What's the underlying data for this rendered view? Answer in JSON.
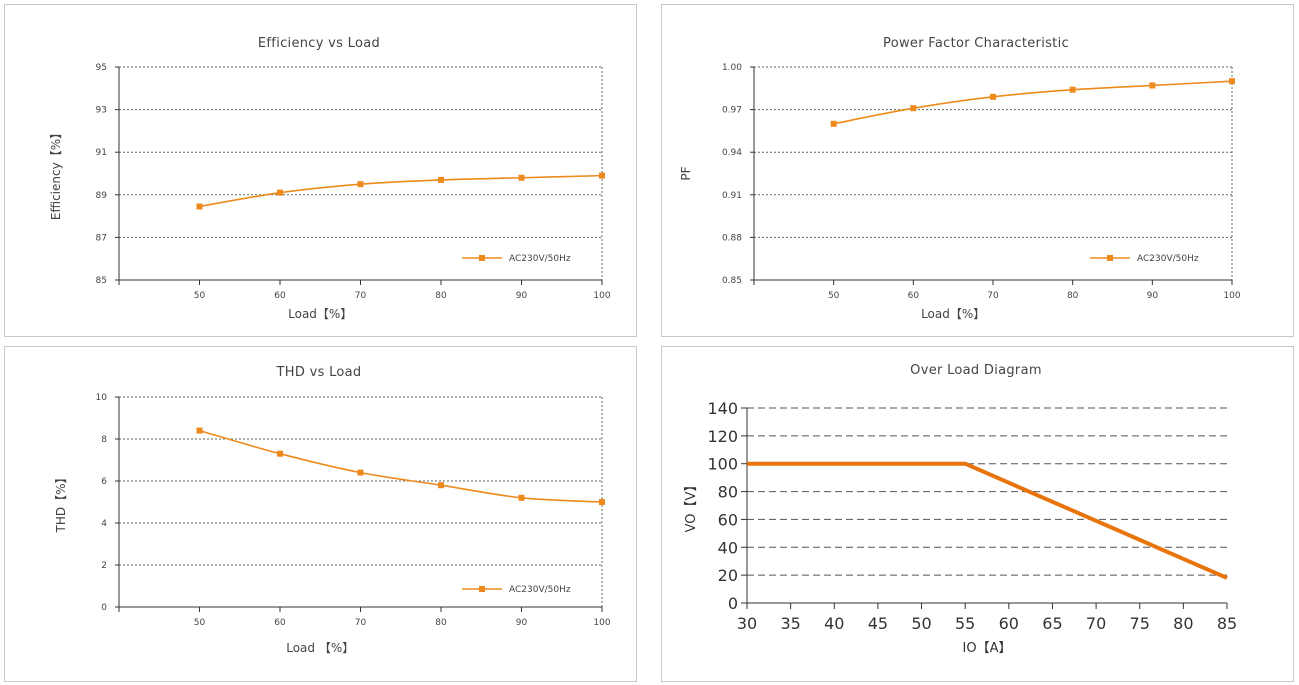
{
  "charts": [
    {
      "title": "Efficiency vs Load",
      "xlabel": "Load【%】",
      "ylabel": "Efficiency【%】",
      "legend": "AC230V/50Hz"
    },
    {
      "title": "Power Factor Characteristic",
      "xlabel": "Load【%】",
      "ylabel": "PF",
      "legend": "AC230V/50Hz"
    },
    {
      "title": "THD vs Load",
      "xlabel": "Load 【%】",
      "ylabel": "THD【%】",
      "legend": "AC230V/50Hz"
    },
    {
      "title": "Over Load Diagram",
      "xlabel": "IO【A】",
      "ylabel": "VO【V】"
    }
  ],
  "chart_data": [
    {
      "type": "line",
      "title": "Efficiency vs Load",
      "xlabel": "Load【%】",
      "ylabel": "Efficiency【%】",
      "x": [
        50,
        60,
        70,
        80,
        90,
        100
      ],
      "x_ticks": [
        "50",
        "60",
        "70",
        "80",
        "90",
        "100"
      ],
      "xlim": [
        40,
        100
      ],
      "ylim": [
        85,
        95
      ],
      "y_ticks": [
        "85",
        "87",
        "89",
        "91",
        "93",
        "95"
      ],
      "grid": true,
      "legend_position": "bottom-right",
      "series": [
        {
          "name": "AC230V/50Hz",
          "values": [
            88.45,
            89.1,
            89.5,
            89.7,
            89.8,
            89.9
          ],
          "color": "#ee8a1c"
        }
      ]
    },
    {
      "type": "line",
      "title": "Power Factor Characteristic",
      "xlabel": "Load【%】",
      "ylabel": "PF",
      "x": [
        50,
        60,
        70,
        80,
        90,
        100
      ],
      "x_ticks": [
        "50",
        "60",
        "70",
        "80",
        "90",
        "100"
      ],
      "xlim": [
        40,
        100
      ],
      "ylim": [
        0.85,
        1.0
      ],
      "y_ticks": [
        "0.85",
        "0.88",
        "0.91",
        "0.94",
        "0.97",
        "1.00"
      ],
      "grid": true,
      "legend_position": "bottom-right",
      "series": [
        {
          "name": "AC230V/50Hz",
          "values": [
            0.96,
            0.971,
            0.979,
            0.984,
            0.987,
            0.99
          ],
          "color": "#ee8a1c"
        }
      ]
    },
    {
      "type": "line",
      "title": "THD vs Load",
      "xlabel": "Load 【%】",
      "ylabel": "THD【%】",
      "x": [
        50,
        60,
        70,
        80,
        90,
        100
      ],
      "x_ticks": [
        "50",
        "60",
        "70",
        "80",
        "90",
        "100"
      ],
      "xlim": [
        40,
        100
      ],
      "ylim": [
        0,
        10
      ],
      "y_ticks": [
        "0",
        "2",
        "4",
        "6",
        "8",
        "10"
      ],
      "grid": true,
      "legend_position": "bottom-right",
      "series": [
        {
          "name": "AC230V/50Hz",
          "values": [
            8.4,
            7.3,
            6.4,
            5.8,
            5.2,
            5.0
          ],
          "color": "#ee8a1c"
        }
      ]
    },
    {
      "type": "line",
      "title": "Over Load Diagram",
      "xlabel": "IO【A】",
      "ylabel": "VO【V】",
      "x": [
        30,
        55,
        85
      ],
      "x_ticks": [
        "30",
        "35",
        "40",
        "45",
        "50",
        "55",
        "60",
        "65",
        "70",
        "75",
        "80",
        "85"
      ],
      "xlim": [
        30,
        85
      ],
      "ylim": [
        0,
        140
      ],
      "y_ticks": [
        "0",
        "20",
        "40",
        "60",
        "80",
        "100",
        "120",
        "140"
      ],
      "grid": true,
      "series": [
        {
          "values": [
            100,
            100,
            18
          ],
          "color": "#e8740c"
        }
      ]
    }
  ]
}
